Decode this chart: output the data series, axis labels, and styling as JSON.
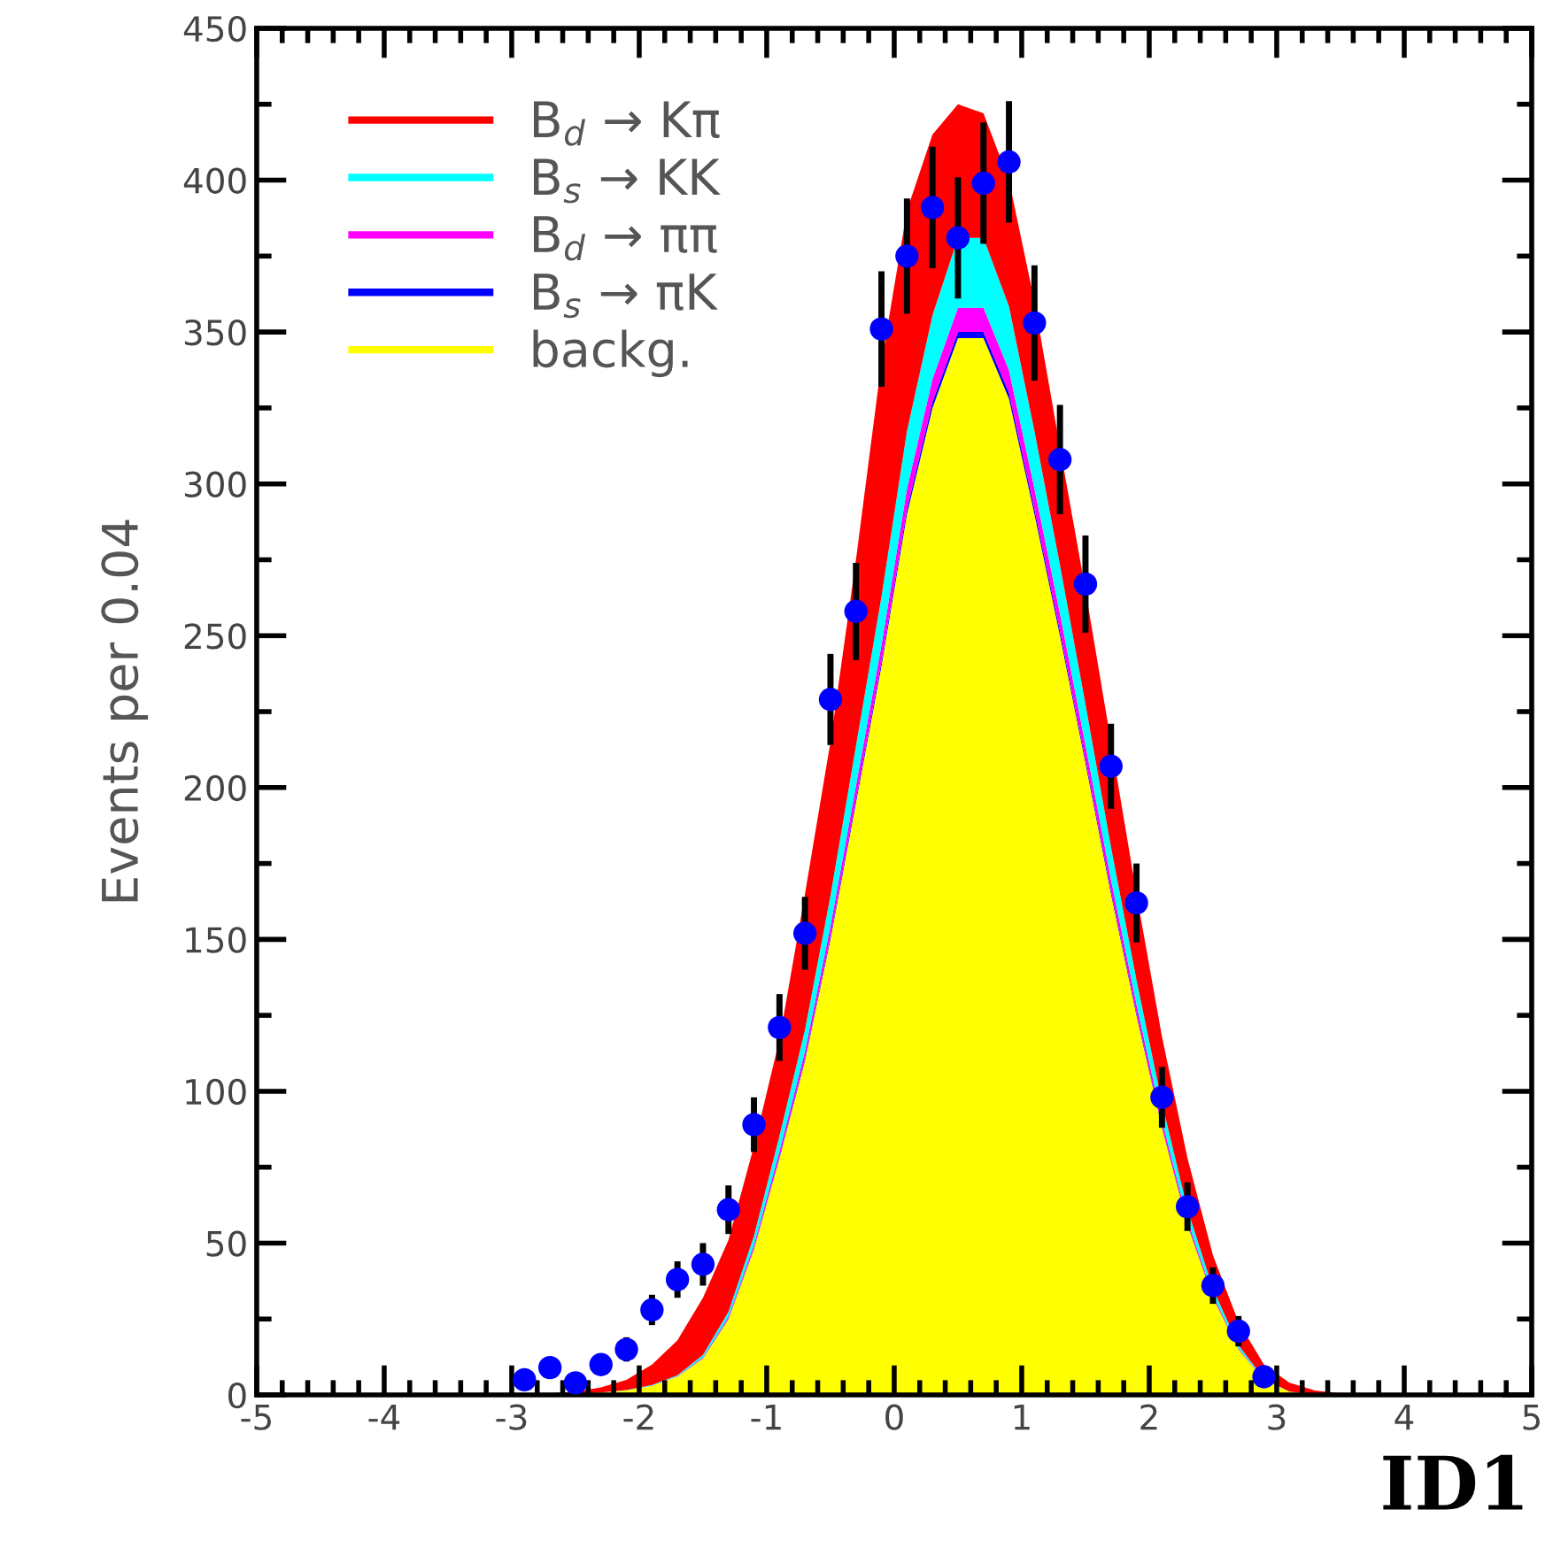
{
  "chart_data": {
    "type": "area",
    "stacked": true,
    "ylabel": "Events per 0.04",
    "x": [
      -5,
      -3.5,
      -3.1,
      -2.9,
      -2.7,
      -2.5,
      -2.3,
      -2.1,
      -1.9,
      -1.7,
      -1.5,
      -1.3,
      -1.1,
      -0.9,
      -0.7,
      -0.5,
      -0.3,
      -0.1,
      0.1,
      0.3,
      0.5,
      0.7,
      0.9,
      1.1,
      1.3,
      1.5,
      1.7,
      1.9,
      2.1,
      2.3,
      2.5,
      2.7,
      2.9,
      3.1,
      3.3,
      3.5,
      3.7,
      4,
      5
    ],
    "series": [
      {
        "name": "backg.",
        "color": "#ffff00",
        "values": [
          0,
          0,
          0,
          0,
          0,
          0.3,
          0.8,
          1.5,
          3,
          6,
          12,
          25,
          48,
          78,
          110,
          150,
          195,
          240,
          290,
          325,
          348,
          348,
          328,
          290,
          250,
          208,
          165,
          125,
          88,
          56,
          32,
          15,
          5,
          1,
          0.2,
          0,
          0,
          0,
          0
        ]
      },
      {
        "name": "B$_{s}$ → πK",
        "color": "#0000ff",
        "values": [
          0,
          0,
          0,
          0,
          0,
          0,
          0,
          0,
          0,
          0,
          0.1,
          0.2,
          0.3,
          0.5,
          0.7,
          0.9,
          1.2,
          1.4,
          1.7,
          2,
          2,
          2,
          2,
          1.7,
          1.5,
          1.2,
          1,
          0.8,
          0.5,
          0.3,
          0.2,
          0.1,
          0,
          0,
          0,
          0,
          0,
          0,
          0
        ]
      },
      {
        "name": "B$_{d}$ → ππ",
        "color": "#ff00ff",
        "values": [
          0,
          0,
          0,
          0,
          0,
          0,
          0,
          0,
          0.1,
          0.1,
          0.3,
          0.6,
          1.1,
          1.8,
          2.5,
          3.5,
          4.5,
          5.5,
          6.7,
          7.5,
          8,
          8,
          7.5,
          6.7,
          5.8,
          4.8,
          3.8,
          2.9,
          2,
          1.3,
          0.7,
          0.3,
          0.1,
          0,
          0,
          0,
          0,
          0,
          0
        ]
      },
      {
        "name": "B$_{s}$ → KK",
        "color": "#00ffff",
        "values": [
          0,
          0,
          0,
          0,
          0,
          0,
          0,
          0.1,
          0.2,
          0.4,
          0.8,
          1.6,
          3,
          5,
          7,
          10,
          13,
          16,
          19,
          21,
          23,
          23,
          21,
          19,
          16,
          13.5,
          10.7,
          8,
          5.7,
          3.6,
          2.1,
          1,
          0.3,
          0.1,
          0,
          0,
          0,
          0,
          0
        ]
      },
      {
        "name": "B$_{d}$ → Kπ",
        "color": "#ff0000",
        "values": [
          0,
          0,
          0.1,
          0.3,
          0.6,
          0.7,
          1.7,
          3.4,
          6.7,
          11.5,
          18.8,
          23.6,
          29.6,
          31.7,
          44.8,
          50.6,
          61.3,
          77.1,
          72.6,
          59.5,
          44,
          41,
          41.5,
          42.6,
          38.7,
          37.5,
          34.5,
          28.3,
          21.8,
          16.8,
          11,
          7.6,
          4.6,
          2.9,
          1.3,
          0.5,
          0.2,
          0,
          0
        ]
      },
      {
        "type": "scatter",
        "color": "#0000ff",
        "marker": "circle",
        "x": [
          -2.9,
          -2.7,
          -2.5,
          -2.3,
          -2.1,
          -1.9,
          -1.7,
          -1.5,
          -1.3,
          -1.1,
          -0.9,
          -0.7,
          -0.5,
          -0.3,
          -0.1,
          0.1,
          0.3,
          0.5,
          0.7,
          0.9,
          1.1,
          1.3,
          1.5,
          1.7,
          1.9,
          2.1,
          2.3,
          2.5,
          2.7,
          2.9
        ],
        "values": [
          5,
          9,
          4,
          10,
          15,
          28,
          38,
          43,
          61,
          89,
          121,
          152,
          229,
          258,
          351,
          375,
          391,
          381,
          399,
          406,
          353,
          308,
          267,
          207,
          162,
          98,
          62,
          36,
          21,
          6
        ],
        "errors": [
          null,
          null,
          null,
          null,
          4,
          5,
          6,
          7,
          8,
          9,
          11,
          12,
          15,
          16,
          19,
          19,
          20,
          20,
          20,
          20,
          19,
          18,
          16,
          14,
          13,
          10,
          8,
          6,
          5,
          null
        ]
      }
    ],
    "xlim": [
      -5,
      5
    ],
    "xticks": [
      -5,
      -4,
      -3,
      -2,
      -1,
      0,
      1,
      2,
      3,
      4,
      5
    ],
    "ylim": [
      0,
      450
    ],
    "yticks": [
      0,
      50,
      100,
      150,
      200,
      250,
      300,
      350,
      400,
      450
    ],
    "legend": "top left",
    "grid": false,
    "annotations": [
      "ID1"
    ]
  }
}
